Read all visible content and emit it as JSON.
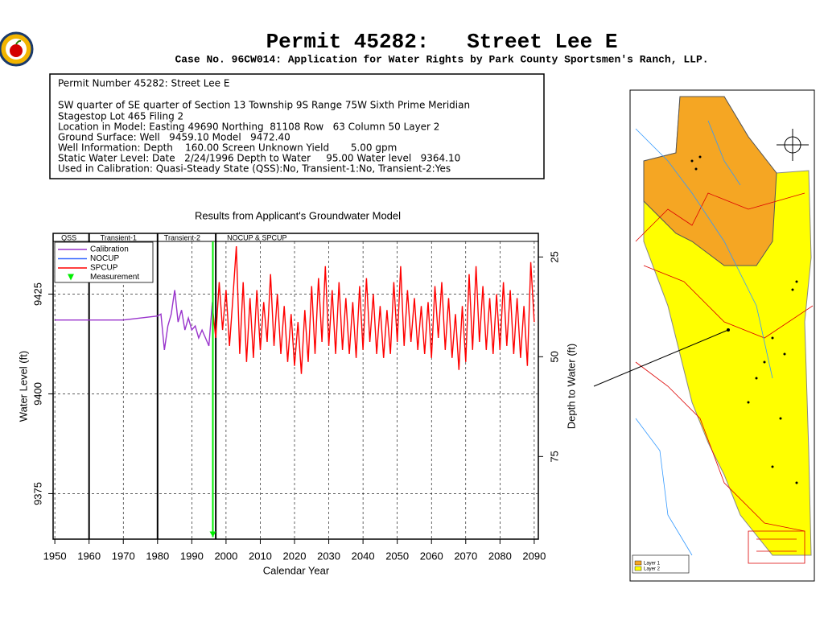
{
  "header": {
    "title": "Permit 45282:   Street Lee E",
    "subtitle": "Case No. 96CW014: Application for Water Rights by Park County Sportsmen's Ranch, LLP."
  },
  "info": {
    "lines": [
      "Permit Number 45282: Street Lee E",
      "SW quarter of SE quarter of Section 13 Township 9S Range 75W Sixth Prime Meridian",
      "Stagestop Lot 465 Filing 2",
      "Location in Model: Easting 49690 Northing  81108 Row   63 Column 50 Layer 2",
      "Ground Surface: Well   9459.10 Model   9472.40",
      "Well Information: Depth    160.00 Screen Unknown Yield       5.00 gpm",
      "Static Water Level: Date   2/24/1996 Depth to Water     95.00 Water level   9364.10",
      "Used in Calibration: Quasi-Steady State (QSS):No, Transient-1:No, Transient-2:Yes"
    ]
  },
  "chart_data": {
    "type": "line",
    "title": "Results from Applicant's Groundwater Model",
    "x_label": "Calendar Year",
    "y_label": "Water Level (ft)",
    "y2_label": "Depth to Water (ft)",
    "xlim": [
      1949.5,
      2091.2
    ],
    "xticks": [
      1950,
      1960,
      1970,
      1980,
      1990,
      2000,
      2010,
      2020,
      2030,
      2040,
      2050,
      2060,
      2070,
      2080,
      2090
    ],
    "ylim": [
      9363.6,
      9438.2
    ],
    "yticks": [
      9375,
      9400,
      9425
    ],
    "y2lim": [
      95.7,
      21.1
    ],
    "y2ticks": [
      25,
      50,
      75
    ],
    "grid": true,
    "legend": "upper left",
    "periods": [
      {
        "label": "QSS",
        "start": 1950,
        "end": 1960
      },
      {
        "label": "Transient-1",
        "start": 1960,
        "end": 1980
      },
      {
        "label": "Transient-2",
        "start": 1980,
        "end": 1997
      },
      {
        "label": "NOCUP & SPCUP",
        "start": 1997,
        "end": 2090
      }
    ],
    "series": [
      {
        "name": "Calibration",
        "color": "#9933cc",
        "x": [
          1950,
          1970,
          1980,
          1981,
          1982,
          1983,
          1984,
          1985,
          1986,
          1987,
          1988,
          1989,
          1990,
          1991,
          1992,
          1993,
          1994,
          1995,
          1996
        ],
        "values": [
          9418.5,
          9418.5,
          9419.5,
          9420,
          9411,
          9417,
          9420,
          9426,
          9418,
          9421,
          9416,
          9419,
          9416,
          9417,
          9414,
          9416,
          9414,
          9412,
          9423
        ]
      },
      {
        "name": "NOCUP",
        "color": "#3366ff"
      },
      {
        "name": "SPCUP",
        "color": "#ff0000",
        "x": [
          1996,
          1997,
          1998,
          1999,
          2000,
          2001,
          2002,
          2003,
          2004,
          2005,
          2006,
          2007,
          2008,
          2009,
          2010,
          2011,
          2012,
          2013,
          2014,
          2015,
          2016,
          2017,
          2018,
          2019,
          2020,
          2021,
          2022,
          2023,
          2024,
          2025,
          2026,
          2027,
          2028,
          2029,
          2030,
          2031,
          2032,
          2033,
          2034,
          2035,
          2036,
          2037,
          2038,
          2039,
          2040,
          2041,
          2042,
          2043,
          2044,
          2045,
          2046,
          2047,
          2048,
          2049,
          2050,
          2051,
          2052,
          2053,
          2054,
          2055,
          2056,
          2057,
          2058,
          2059,
          2060,
          2061,
          2062,
          2063,
          2064,
          2065,
          2066,
          2067,
          2068,
          2069,
          2070,
          2071,
          2072,
          2073,
          2074,
          2075,
          2076,
          2077,
          2078,
          2079,
          2080,
          2081,
          2082,
          2083,
          2084,
          2085,
          2086,
          2087,
          2088,
          2089,
          2090
        ],
        "values": [
          9422,
          9414,
          9428,
          9416,
          9426,
          9412,
          9424,
          9437,
          9410,
          9428,
          9408,
          9424,
          9409,
          9426,
          9411,
          9423,
          9413,
          9430,
          9412,
          9425,
          9410,
          9422,
          9408,
          9420,
          9407,
          9418,
          9405,
          9421,
          9408,
          9427,
          9410,
          9429,
          9413,
          9432,
          9412,
          9426,
          9410,
          9428,
          9411,
          9424,
          9410,
          9423,
          9409,
          9427,
          9411,
          9429,
          9413,
          9425,
          9410,
          9422,
          9409,
          9421,
          9410,
          9428,
          9413,
          9432,
          9412,
          9426,
          9413,
          9424,
          9411,
          9422,
          9410,
          9423,
          9409,
          9427,
          9414,
          9428,
          9411,
          9424,
          9409,
          9420,
          9406,
          9422,
          9408,
          9430,
          9411,
          9432,
          9413,
          9427,
          9411,
          9424,
          9410,
          9425,
          9411,
          9428,
          9412,
          9426,
          9410,
          9424,
          9409,
          9422,
          9407,
          9433,
          9418
        ]
      },
      {
        "name": "Measurement",
        "color": "#00ee00",
        "style": "marker",
        "x": [
          1996.15
        ],
        "values": [
          9364.1
        ]
      }
    ]
  },
  "map": {
    "legend": [
      "Layer 1",
      "Layer 2"
    ]
  }
}
